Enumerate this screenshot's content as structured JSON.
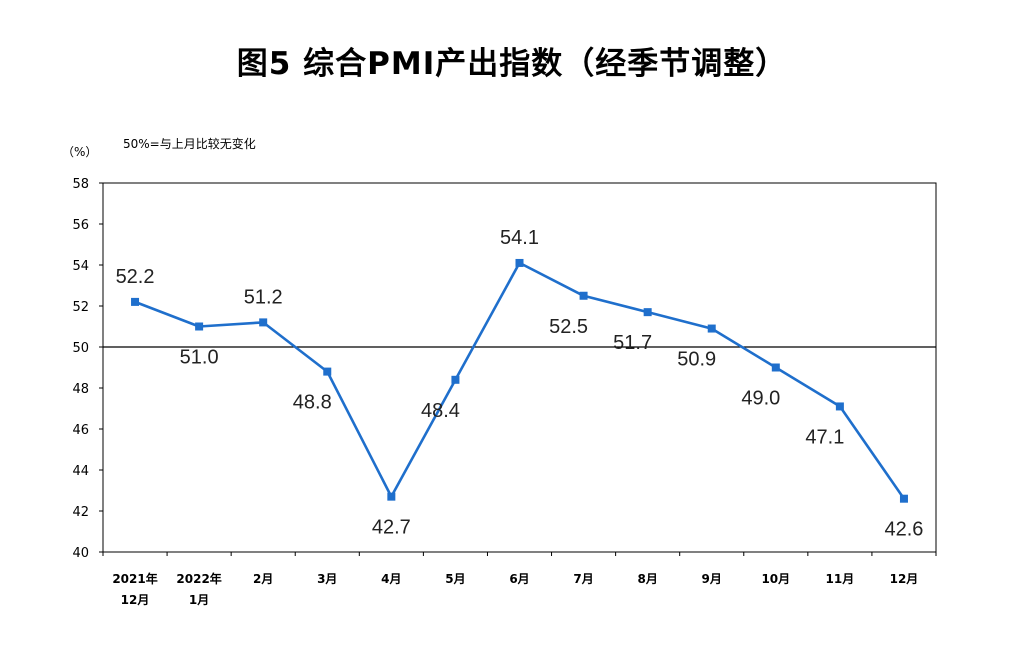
{
  "chart_data": {
    "type": "line",
    "title": "图5 综合PMI产出指数（经季节调整）",
    "y_unit": "（%）",
    "reference_note": "50%=与上月比较无变化",
    "reference_value": 50,
    "ylim": [
      40,
      58
    ],
    "y_ticks": [
      "40",
      "42",
      "44",
      "46",
      "48",
      "50",
      "52",
      "54",
      "56",
      "58"
    ],
    "grid": false,
    "categories": [
      [
        "2021年",
        "12月"
      ],
      [
        "2022年",
        "1月"
      ],
      [
        "2月"
      ],
      [
        "3月"
      ],
      [
        "4月"
      ],
      [
        "5月"
      ],
      [
        "6月"
      ],
      [
        "7月"
      ],
      [
        "8月"
      ],
      [
        "9月"
      ],
      [
        "10月"
      ],
      [
        "11月"
      ],
      [
        "12月"
      ]
    ],
    "series": [
      {
        "values": [
          52.2,
          51.0,
          51.2,
          48.8,
          42.7,
          48.4,
          54.1,
          52.5,
          51.7,
          50.9,
          49.0,
          47.1,
          42.6
        ],
        "labels": [
          "52.2",
          "51.0",
          "51.2",
          "48.8",
          "42.7",
          "48.4",
          "54.1",
          "52.5",
          "51.7",
          "50.9",
          "49.0",
          "47.1",
          "42.6"
        ],
        "color": "#1f6fcc"
      }
    ]
  }
}
